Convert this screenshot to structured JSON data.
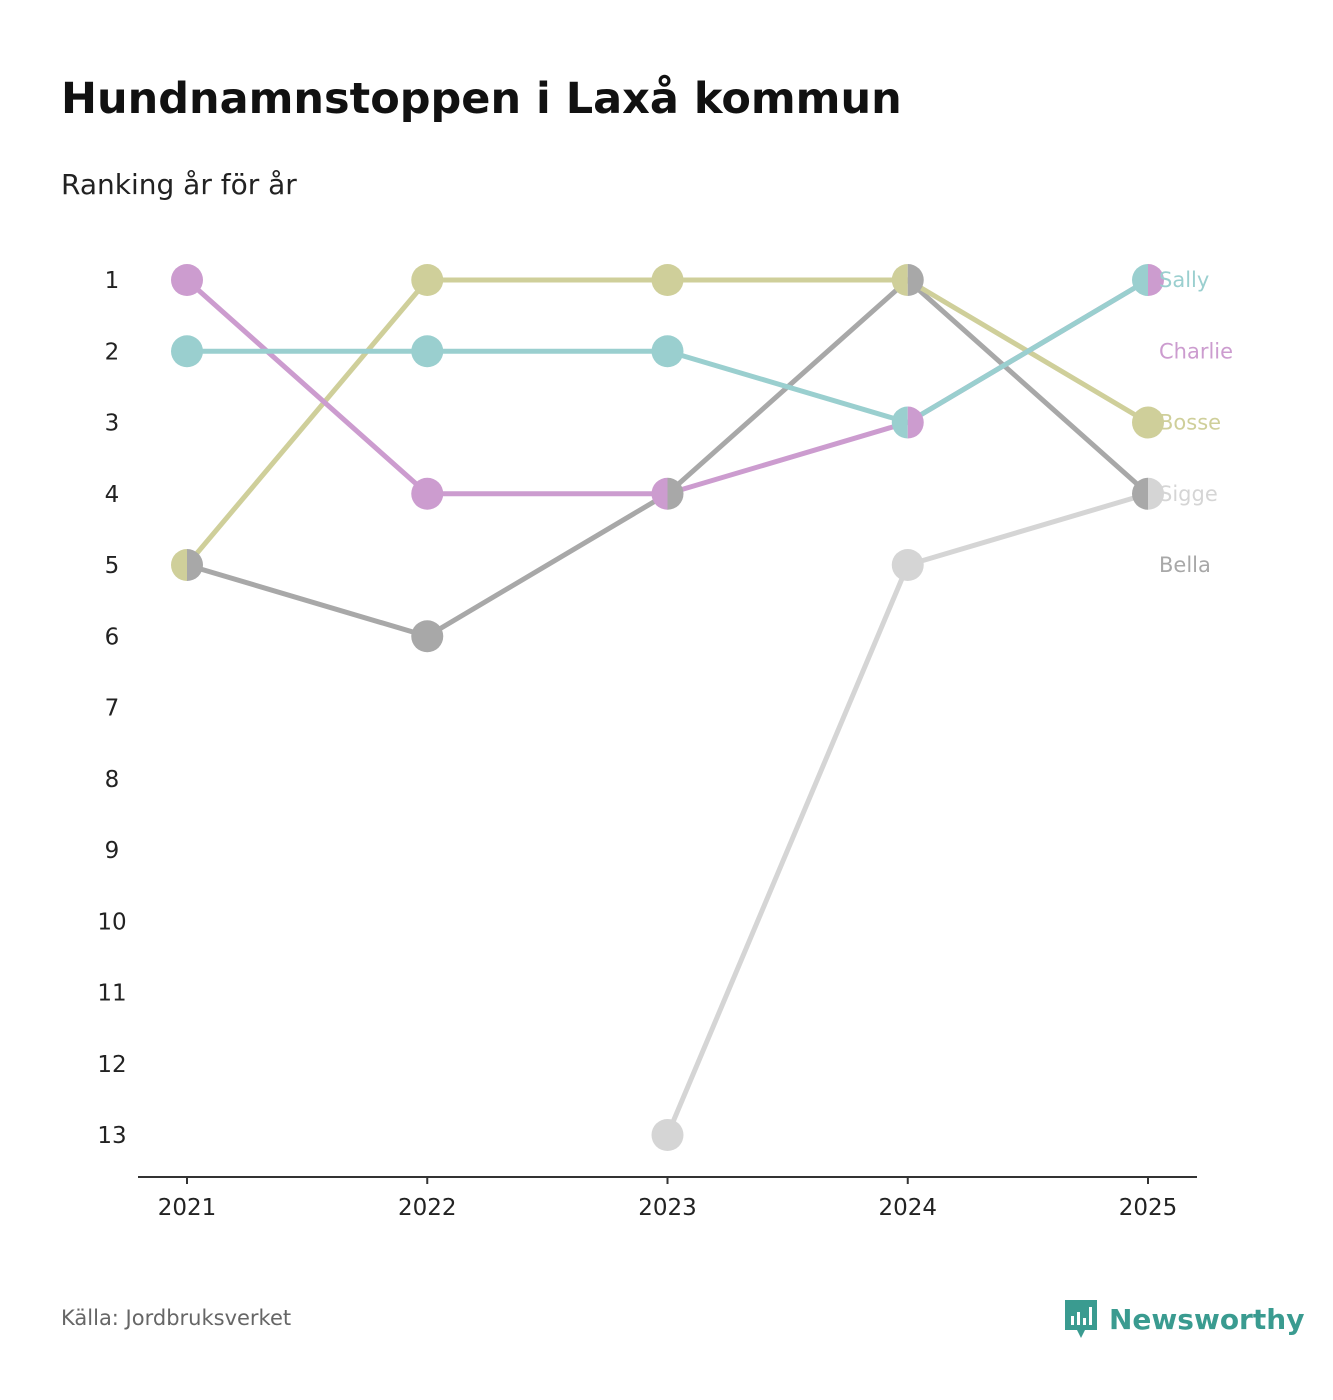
{
  "header": {
    "title": "Hundnamnstoppen i Laxå kommun",
    "subtitle": "Ranking år för år"
  },
  "footer": {
    "source": "Källa: Jordbruksverket",
    "brand": "Newsworthy",
    "brand_color": "#3a9b90"
  },
  "chart_data": {
    "type": "line",
    "title": "Hundnamnstoppen i Laxå kommun",
    "subtitle": "Ranking år för år",
    "xlabel": "",
    "ylabel": "",
    "x": [
      "2021",
      "2022",
      "2023",
      "2024",
      "2025"
    ],
    "y_ticks": [
      "1",
      "2",
      "3",
      "4",
      "5",
      "6",
      "7",
      "8",
      "9",
      "10",
      "11",
      "12",
      "13"
    ],
    "ylim": [
      1,
      13
    ],
    "y_inverted": true,
    "grid": false,
    "series": [
      {
        "name": "Sigge",
        "color": "#d5d5d5",
        "values": [
          null,
          null,
          13,
          5,
          4
        ]
      },
      {
        "name": "Bella",
        "color": "#a8a8a8",
        "values": [
          5,
          6,
          4,
          1,
          4
        ]
      },
      {
        "name": "Bosse",
        "color": "#cfcf9a",
        "values": [
          5,
          1,
          1,
          1,
          3
        ]
      },
      {
        "name": "Charlie",
        "color": "#cc9ccf",
        "values": [
          1,
          4,
          4,
          3,
          1
        ]
      },
      {
        "name": "Sally",
        "color": "#9acfcf",
        "values": [
          2,
          2,
          2,
          3,
          1
        ]
      }
    ],
    "end_labels": [
      {
        "name": "Sally",
        "color": "#9acfcf",
        "rank": 1
      },
      {
        "name": "Charlie",
        "color": "#cc9ccf",
        "rank": 2
      },
      {
        "name": "Bosse",
        "color": "#cfcf9a",
        "rank": 3
      },
      {
        "name": "Sigge",
        "color": "#d5d5d5",
        "rank": 4
      },
      {
        "name": "Bella",
        "color": "#a8a8a8",
        "rank": 5
      }
    ]
  }
}
